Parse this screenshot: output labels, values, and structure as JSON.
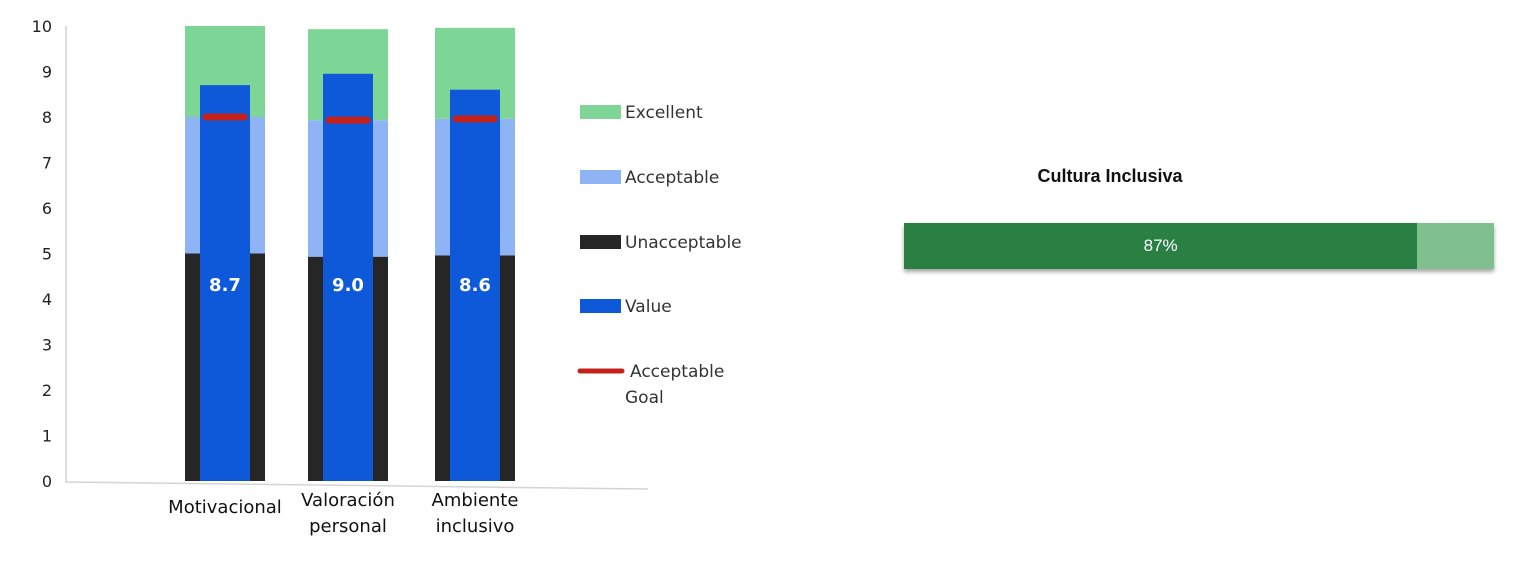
{
  "chart_data": [
    {
      "type": "bar",
      "subtype": "bullet",
      "title": "",
      "categories": [
        "Motivacional",
        "Valoración personal",
        "Ambiente inclusivo"
      ],
      "category_lines": [
        [
          "Motivacional"
        ],
        [
          "Valoración",
          "personal"
        ],
        [
          "Ambiente",
          "inclusivo"
        ]
      ],
      "ylim": [
        0,
        10
      ],
      "yticks": [
        "0",
        "1",
        "2",
        "3",
        "4",
        "5",
        "6",
        "7",
        "8",
        "9",
        "10"
      ],
      "bands": [
        {
          "name": "Unacceptable",
          "color": "#262626",
          "values": [
            5.0,
            4.93,
            4.96
          ]
        },
        {
          "name": "Acceptable",
          "color": "#8fb4f5",
          "values": [
            3.0,
            3.0,
            3.0
          ]
        },
        {
          "name": "Excellent",
          "color": "#7dd695",
          "values": [
            2.0,
            2.0,
            2.0
          ]
        }
      ],
      "value_series": {
        "name": "Value",
        "color": "#0e59da",
        "values": [
          8.7,
          8.95,
          8.6
        ],
        "labels": [
          "8.7",
          "9.0",
          "8.6"
        ]
      },
      "goal_series": {
        "name": "Acceptable Goal",
        "color": "#c4211b",
        "values": [
          8.0,
          7.93,
          7.96
        ]
      },
      "legend": {
        "position": "right",
        "items": [
          {
            "label": "Excellent",
            "color": "#7dd695",
            "shape": "box"
          },
          {
            "label": "Acceptable",
            "color": "#8fb4f5",
            "shape": "box"
          },
          {
            "label": "Unacceptable",
            "color": "#262626",
            "shape": "box"
          },
          {
            "label": "Value",
            "color": "#0e59da",
            "shape": "box"
          },
          {
            "label_lines": [
              "Acceptable",
              "Goal"
            ],
            "color": "#c4211b",
            "shape": "line"
          }
        ]
      },
      "grid": false
    },
    {
      "type": "bar",
      "subtype": "progress",
      "title": "Cultura Inclusiva",
      "value": 0.87,
      "label": "87%",
      "fill_color": "#2a7f42",
      "track_color": "#7fc08e"
    }
  ]
}
